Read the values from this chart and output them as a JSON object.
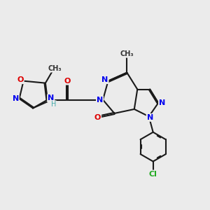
{
  "background_color": "#ebebeb",
  "bond_color": "#1a1a1a",
  "bond_width": 1.5,
  "dbo": 0.055,
  "atom_colors": {
    "N": "#0000ee",
    "O": "#dd0000",
    "Cl": "#22aa22",
    "H": "#44aaaa"
  },
  "figsize": [
    3.0,
    3.0
  ],
  "dpi": 100
}
